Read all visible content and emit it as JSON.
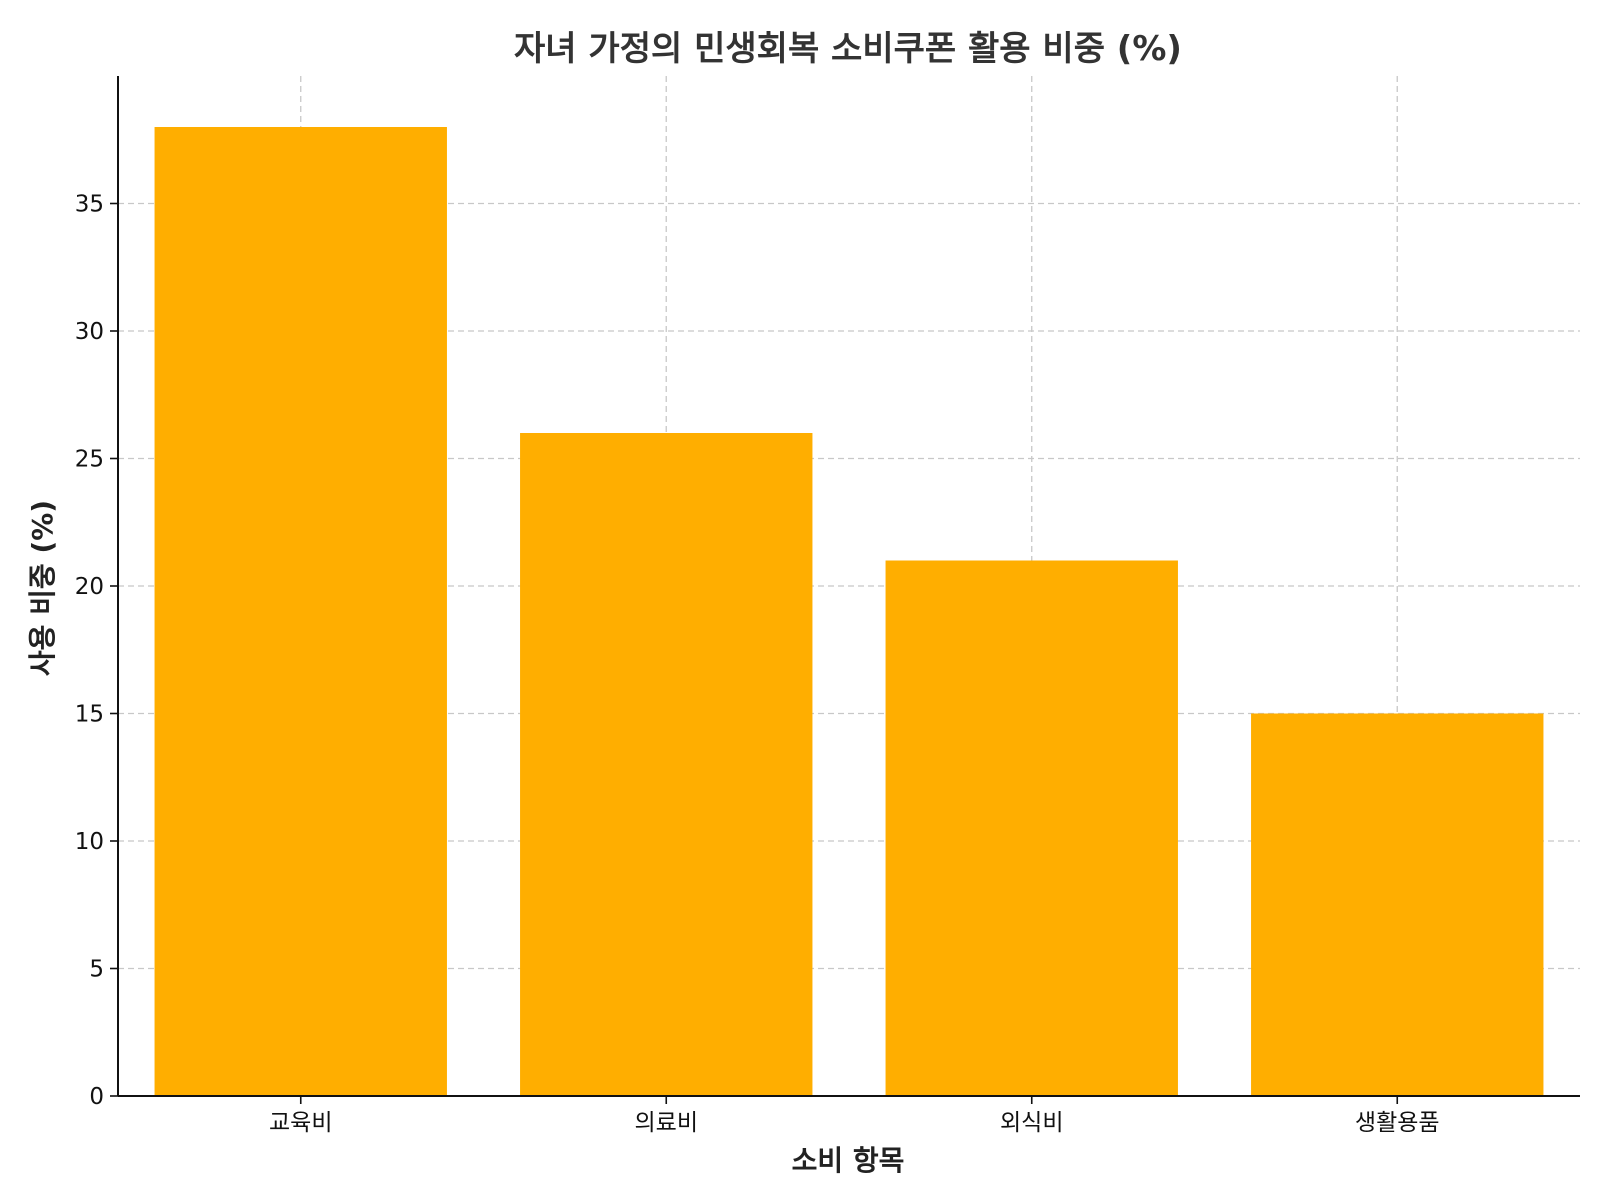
{
  "chart_data": {
    "type": "bar",
    "title": "자녀 가정의 민생회복 소비쿠폰 활용 비중 (%)",
    "xlabel": "소비 항목",
    "ylabel": "사용 비중 (%)",
    "categories": [
      "교육비",
      "의료비",
      "외식비",
      "생활용품"
    ],
    "values": [
      38,
      26,
      21,
      15
    ],
    "ylim": [
      0,
      40
    ],
    "yticks": [
      0,
      5,
      10,
      15,
      20,
      25,
      30,
      35
    ],
    "grid": true,
    "bar_color": "#FFAE00"
  }
}
